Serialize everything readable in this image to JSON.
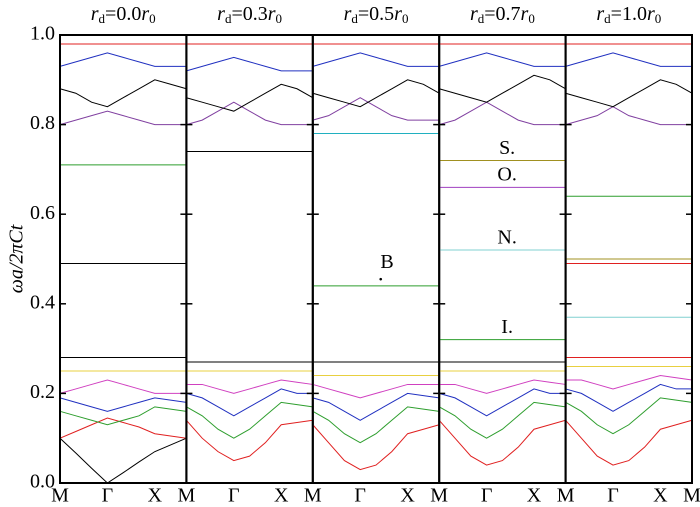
{
  "chart_data": [
    {
      "type": "line",
      "title": "rd=0.0r0",
      "y_label": "ωa/2πCt",
      "ylim": [
        0,
        1
      ],
      "yticks": [
        {
          "value": 0,
          "label": "0.0"
        },
        0.2,
        0.4,
        0.6,
        0.8,
        {
          "value": 1,
          "label": "1.0"
        }
      ],
      "categories": [
        "M",
        null,
        null,
        "Γ",
        null,
        null,
        "X",
        null,
        "M"
      ],
      "series": [
        {
          "color": "#000000",
          "values": [
            0.1,
            0.067,
            0.033,
            0,
            0.023,
            0.047,
            0.07,
            0.085,
            0.1
          ]
        },
        {
          "color": "#e02020",
          "values": [
            0.1,
            0.115,
            0.13,
            0.145,
            0.135,
            0.125,
            0.11,
            0.105,
            0.1
          ]
        },
        {
          "color": "#2e9e2e",
          "values": [
            0.16,
            0.15,
            0.14,
            0.13,
            0.14,
            0.15,
            0.17,
            0.165,
            0.16
          ]
        },
        {
          "color": "#2030c0",
          "values": [
            0.19,
            0.18,
            0.17,
            0.16,
            0.17,
            0.18,
            0.19,
            0.185,
            0.18
          ]
        },
        {
          "color": "#d040c0",
          "values": [
            0.2,
            0.21,
            0.22,
            0.23,
            0.22,
            0.21,
            0.2,
            0.2,
            0.2
          ]
        },
        {
          "color": "#e8d040",
          "values": [
            0.25,
            0.25,
            0.25,
            0.25,
            0.25,
            0.25,
            0.25,
            0.25,
            0.25
          ]
        },
        {
          "color": "#000000",
          "values": [
            0.28,
            0.28,
            0.28,
            0.28,
            0.28,
            0.28,
            0.28,
            0.28,
            0.28
          ]
        },
        {
          "color": "#000000",
          "values": [
            0.49,
            0.49,
            0.49,
            0.49,
            0.49,
            0.49,
            0.49,
            0.49,
            0.49
          ]
        },
        {
          "color": "#2e9e2e",
          "values": [
            0.71,
            0.71,
            0.71,
            0.71,
            0.71,
            0.71,
            0.71,
            0.71,
            0.71
          ]
        },
        {
          "color": "#8040a0",
          "values": [
            0.8,
            0.81,
            0.82,
            0.83,
            0.82,
            0.81,
            0.8,
            0.8,
            0.8
          ]
        },
        {
          "color": "#000000",
          "values": [
            0.88,
            0.87,
            0.85,
            0.84,
            0.86,
            0.88,
            0.9,
            0.89,
            0.88
          ]
        },
        {
          "color": "#2030c0",
          "values": [
            0.93,
            0.94,
            0.95,
            0.96,
            0.95,
            0.94,
            0.93,
            0.93,
            0.93
          ]
        },
        {
          "color": "#e02020",
          "values": [
            0.98,
            0.98,
            0.98,
            0.98,
            0.98,
            0.98,
            0.98,
            0.98,
            0.98
          ]
        }
      ]
    },
    {
      "type": "line",
      "title": "rd=0.3r0",
      "categories": [
        null,
        null,
        null,
        "Γ",
        null,
        null,
        "X",
        null,
        "M"
      ],
      "series": [
        {
          "color": "#e02020",
          "values": [
            0.14,
            0.1,
            0.07,
            0.05,
            0.06,
            0.09,
            0.13,
            0.135,
            0.14
          ]
        },
        {
          "color": "#2e9e2e",
          "values": [
            0.17,
            0.15,
            0.12,
            0.1,
            0.12,
            0.15,
            0.18,
            0.175,
            0.17
          ]
        },
        {
          "color": "#2030c0",
          "values": [
            0.2,
            0.19,
            0.17,
            0.15,
            0.17,
            0.19,
            0.21,
            0.2,
            0.2
          ]
        },
        {
          "color": "#d040c0",
          "values": [
            0.22,
            0.22,
            0.21,
            0.2,
            0.21,
            0.22,
            0.23,
            0.225,
            0.22
          ]
        },
        {
          "color": "#e8d040",
          "values": [
            0.25,
            0.25,
            0.25,
            0.25,
            0.25,
            0.25,
            0.25,
            0.25,
            0.25
          ]
        },
        {
          "color": "#000000",
          "values": [
            0.27,
            0.27,
            0.27,
            0.27,
            0.27,
            0.27,
            0.27,
            0.27,
            0.27
          ]
        },
        {
          "color": "#000000",
          "values": [
            0.74,
            0.74,
            0.74,
            0.74,
            0.74,
            0.74,
            0.74,
            0.74,
            0.74
          ]
        },
        {
          "color": "#8040a0",
          "values": [
            0.8,
            0.81,
            0.83,
            0.85,
            0.83,
            0.81,
            0.8,
            0.8,
            0.8
          ]
        },
        {
          "color": "#000000",
          "values": [
            0.86,
            0.85,
            0.84,
            0.83,
            0.85,
            0.87,
            0.89,
            0.88,
            0.86
          ]
        },
        {
          "color": "#2030c0",
          "values": [
            0.92,
            0.93,
            0.94,
            0.95,
            0.94,
            0.93,
            0.92,
            0.92,
            0.92
          ]
        },
        {
          "color": "#e02020",
          "values": [
            0.98,
            0.98,
            0.98,
            0.98,
            0.98,
            0.98,
            0.98,
            0.98,
            0.98
          ]
        }
      ]
    },
    {
      "type": "line",
      "title": "rd=0.5r0",
      "annotations": [
        "B"
      ],
      "categories": [
        null,
        null,
        null,
        "Γ",
        null,
        null,
        "X",
        null,
        "M"
      ],
      "series": [
        {
          "color": "#e02020",
          "values": [
            0.13,
            0.09,
            0.05,
            0.03,
            0.04,
            0.07,
            0.11,
            0.12,
            0.13
          ]
        },
        {
          "color": "#2e9e2e",
          "values": [
            0.16,
            0.14,
            0.11,
            0.09,
            0.11,
            0.14,
            0.17,
            0.165,
            0.16
          ]
        },
        {
          "color": "#2030c0",
          "values": [
            0.19,
            0.18,
            0.16,
            0.14,
            0.16,
            0.18,
            0.2,
            0.195,
            0.19
          ]
        },
        {
          "color": "#d040c0",
          "values": [
            0.22,
            0.21,
            0.2,
            0.19,
            0.2,
            0.21,
            0.22,
            0.22,
            0.22
          ]
        },
        {
          "color": "#e8d040",
          "values": [
            0.24,
            0.24,
            0.24,
            0.24,
            0.24,
            0.24,
            0.24,
            0.24,
            0.24
          ]
        },
        {
          "color": "#000000",
          "values": [
            0.27,
            0.27,
            0.27,
            0.27,
            0.27,
            0.27,
            0.27,
            0.27,
            0.27
          ]
        },
        {
          "color": "#2e9e2e",
          "values": [
            0.44,
            0.44,
            0.44,
            0.44,
            0.44,
            0.44,
            0.44,
            0.44,
            0.44
          ]
        },
        {
          "color": "#20b0c0",
          "values": [
            0.78,
            0.78,
            0.78,
            0.78,
            0.78,
            0.78,
            0.78,
            0.78,
            0.78
          ]
        },
        {
          "color": "#8040a0",
          "values": [
            0.81,
            0.82,
            0.84,
            0.86,
            0.84,
            0.82,
            0.81,
            0.81,
            0.81
          ]
        },
        {
          "color": "#000000",
          "values": [
            0.87,
            0.86,
            0.85,
            0.84,
            0.86,
            0.88,
            0.9,
            0.89,
            0.87
          ]
        },
        {
          "color": "#2030c0",
          "values": [
            0.93,
            0.94,
            0.95,
            0.96,
            0.95,
            0.94,
            0.93,
            0.93,
            0.93
          ]
        },
        {
          "color": "#e02020",
          "values": [
            0.98,
            0.98,
            0.98,
            0.98,
            0.98,
            0.98,
            0.98,
            0.98,
            0.98
          ]
        }
      ]
    },
    {
      "type": "line",
      "title": "rd=0.7r0",
      "annotations": [
        "S.",
        "O.",
        "N.",
        "I."
      ],
      "categories": [
        null,
        null,
        null,
        "Γ",
        null,
        null,
        "X",
        null,
        "M"
      ],
      "series": [
        {
          "color": "#e02020",
          "values": [
            0.14,
            0.1,
            0.06,
            0.04,
            0.05,
            0.08,
            0.12,
            0.13,
            0.14
          ]
        },
        {
          "color": "#2e9e2e",
          "values": [
            0.17,
            0.15,
            0.12,
            0.1,
            0.12,
            0.15,
            0.18,
            0.175,
            0.17
          ]
        },
        {
          "color": "#2030c0",
          "values": [
            0.2,
            0.19,
            0.17,
            0.15,
            0.17,
            0.19,
            0.21,
            0.2,
            0.2
          ]
        },
        {
          "color": "#d040c0",
          "values": [
            0.22,
            0.22,
            0.21,
            0.2,
            0.21,
            0.22,
            0.23,
            0.225,
            0.22
          ]
        },
        {
          "color": "#e8d040",
          "values": [
            0.25,
            0.25,
            0.25,
            0.25,
            0.25,
            0.25,
            0.25,
            0.25,
            0.25
          ]
        },
        {
          "color": "#000000",
          "values": [
            0.27,
            0.27,
            0.27,
            0.27,
            0.27,
            0.27,
            0.27,
            0.27,
            0.27
          ]
        },
        {
          "color": "#2e9e2e",
          "values": [
            0.32,
            0.32,
            0.32,
            0.32,
            0.32,
            0.32,
            0.32,
            0.32,
            0.32
          ]
        },
        {
          "color": "#80d0d0",
          "values": [
            0.52,
            0.52,
            0.52,
            0.52,
            0.52,
            0.52,
            0.52,
            0.52,
            0.52
          ]
        },
        {
          "color": "#a040c0",
          "values": [
            0.66,
            0.66,
            0.66,
            0.66,
            0.66,
            0.66,
            0.66,
            0.66,
            0.66
          ]
        },
        {
          "color": "#a09020",
          "values": [
            0.72,
            0.72,
            0.72,
            0.72,
            0.72,
            0.72,
            0.72,
            0.72,
            0.72
          ]
        },
        {
          "color": "#8040a0",
          "values": [
            0.8,
            0.81,
            0.83,
            0.85,
            0.83,
            0.81,
            0.8,
            0.8,
            0.8
          ]
        },
        {
          "color": "#000000",
          "values": [
            0.88,
            0.87,
            0.86,
            0.85,
            0.87,
            0.89,
            0.91,
            0.9,
            0.88
          ]
        },
        {
          "color": "#2030c0",
          "values": [
            0.93,
            0.94,
            0.95,
            0.96,
            0.95,
            0.94,
            0.93,
            0.93,
            0.93
          ]
        },
        {
          "color": "#e02020",
          "values": [
            0.98,
            0.98,
            0.98,
            0.98,
            0.98,
            0.98,
            0.98,
            0.98,
            0.98
          ]
        }
      ]
    },
    {
      "type": "line",
      "title": "rd=1.0r0",
      "categories": [
        null,
        null,
        null,
        "Γ",
        null,
        null,
        "X",
        null,
        "M"
      ],
      "series": [
        {
          "color": "#e02020",
          "values": [
            0.14,
            0.1,
            0.06,
            0.04,
            0.05,
            0.08,
            0.12,
            0.13,
            0.14
          ]
        },
        {
          "color": "#2e9e2e",
          "values": [
            0.18,
            0.16,
            0.13,
            0.11,
            0.13,
            0.16,
            0.19,
            0.185,
            0.18
          ]
        },
        {
          "color": "#2030c0",
          "values": [
            0.21,
            0.2,
            0.18,
            0.16,
            0.18,
            0.2,
            0.22,
            0.21,
            0.21
          ]
        },
        {
          "color": "#d040c0",
          "values": [
            0.23,
            0.23,
            0.22,
            0.21,
            0.22,
            0.23,
            0.24,
            0.235,
            0.23
          ]
        },
        {
          "color": "#e8d040",
          "values": [
            0.26,
            0.26,
            0.26,
            0.26,
            0.26,
            0.26,
            0.26,
            0.26,
            0.26
          ]
        },
        {
          "color": "#e02020",
          "values": [
            0.28,
            0.28,
            0.28,
            0.28,
            0.28,
            0.28,
            0.28,
            0.28,
            0.28
          ]
        },
        {
          "color": "#80d0d0",
          "values": [
            0.37,
            0.37,
            0.37,
            0.37,
            0.37,
            0.37,
            0.37,
            0.37,
            0.37
          ]
        },
        {
          "color": "#e02020",
          "values": [
            0.49,
            0.49,
            0.49,
            0.49,
            0.49,
            0.49,
            0.49,
            0.49,
            0.49
          ]
        },
        {
          "color": "#a09020",
          "values": [
            0.5,
            0.5,
            0.5,
            0.5,
            0.5,
            0.5,
            0.5,
            0.5,
            0.5
          ]
        },
        {
          "color": "#2e9e2e",
          "values": [
            0.64,
            0.64,
            0.64,
            0.64,
            0.64,
            0.64,
            0.64,
            0.64,
            0.64
          ]
        },
        {
          "color": "#8040a0",
          "values": [
            0.8,
            0.81,
            0.82,
            0.84,
            0.82,
            0.81,
            0.8,
            0.8,
            0.8
          ]
        },
        {
          "color": "#000000",
          "values": [
            0.87,
            0.86,
            0.85,
            0.84,
            0.86,
            0.88,
            0.9,
            0.89,
            0.87
          ]
        },
        {
          "color": "#2030c0",
          "values": [
            0.93,
            0.94,
            0.95,
            0.96,
            0.95,
            0.94,
            0.93,
            0.93,
            0.93
          ]
        },
        {
          "color": "#e02020",
          "values": [
            0.98,
            0.98,
            0.98,
            0.98,
            0.98,
            0.98,
            0.98,
            0.98,
            0.98
          ]
        }
      ]
    }
  ]
}
